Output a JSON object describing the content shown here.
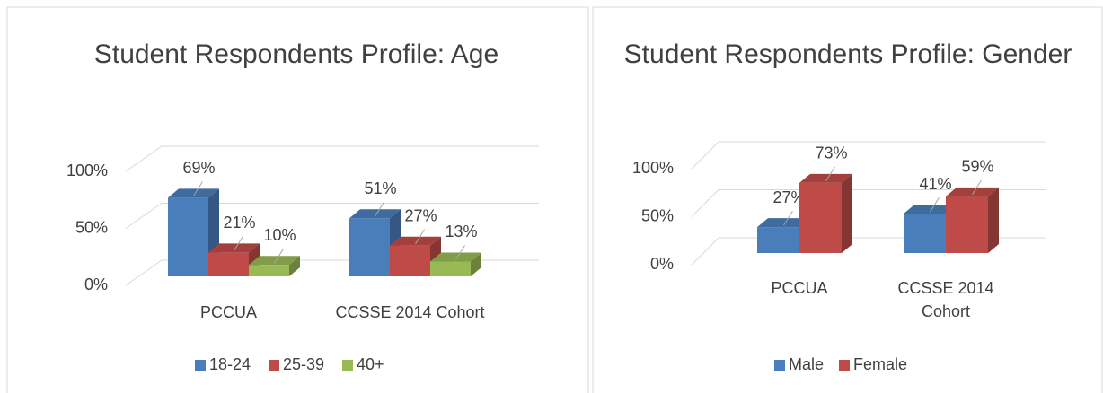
{
  "chart_data": [
    {
      "type": "bar3d",
      "title": "Student Respondents Profile: Age",
      "categories": [
        "PCCUA",
        "CCSSE 2014 Cohort"
      ],
      "series": [
        {
          "name": "18-24",
          "color": "#4a7ebb",
          "values": [
            69,
            51
          ],
          "value_labels": [
            "69%",
            "51%"
          ]
        },
        {
          "name": "25-39",
          "color": "#be4b48",
          "values": [
            21,
            27
          ],
          "value_labels": [
            "21%",
            "27%"
          ]
        },
        {
          "name": "40+",
          "color": "#98b954",
          "values": [
            10,
            13
          ],
          "value_labels": [
            "10%",
            "13%"
          ]
        }
      ],
      "ylim": [
        0,
        100
      ],
      "yticks": [
        {
          "value": 0,
          "label": "0%"
        },
        {
          "value": 50,
          "label": "50%"
        },
        {
          "value": 100,
          "label": "100%"
        }
      ],
      "grid": true,
      "legend": "bottom"
    },
    {
      "type": "bar3d",
      "title": "Student Respondents Profile: Gender",
      "categories": [
        "PCCUA",
        "CCSSE 2014 Cohort"
      ],
      "series": [
        {
          "name": "Male",
          "color": "#4a7ebb",
          "values": [
            27,
            41
          ],
          "value_labels": [
            "27%",
            "41%"
          ]
        },
        {
          "name": "Female",
          "color": "#be4b48",
          "values": [
            73,
            59
          ],
          "value_labels": [
            "73%",
            "59%"
          ]
        }
      ],
      "ylim": [
        0,
        100
      ],
      "yticks": [
        {
          "value": 0,
          "label": "0%"
        },
        {
          "value": 50,
          "label": "50%"
        },
        {
          "value": 100,
          "label": "100%"
        }
      ],
      "grid": true,
      "legend": "bottom"
    }
  ]
}
